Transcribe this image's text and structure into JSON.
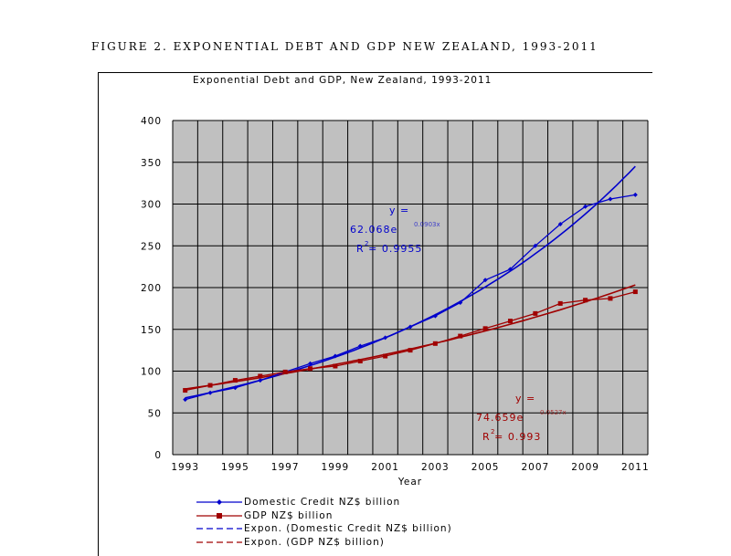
{
  "figure_caption": "FIGURE 2.    EXPONENTIAL DEBT AND GDP NEW ZEALAND, 1993-2011",
  "colors": {
    "credit": "#0000cc",
    "gdp": "#a00000",
    "plot_bg": "#c0c0c0",
    "grid": "#000000"
  },
  "chart_data": {
    "type": "line",
    "title": "Exponential Debt and GDP, New Zealand, 1993-2011",
    "xlabel": "Year",
    "ylabel": "",
    "xlim": [
      1993,
      2011
    ],
    "ylim": [
      0,
      400
    ],
    "y_ticks": [
      0,
      50,
      100,
      150,
      200,
      250,
      300,
      350,
      400
    ],
    "x_tick_labels": [
      "1993",
      "1995",
      "1997",
      "1999",
      "2001",
      "2003",
      "2005",
      "2007",
      "2009",
      "2011"
    ],
    "grid": true,
    "legend_position": "bottom",
    "series": [
      {
        "name": "Domestic Credit NZ$ billion",
        "color": "#0000cc",
        "marker": "diamond",
        "x": [
          1993,
          1994,
          1995,
          1996,
          1997,
          1998,
          1999,
          2000,
          2001,
          2002,
          2003,
          2004,
          2005,
          2006,
          2007,
          2008,
          2009,
          2010,
          2011
        ],
        "y": [
          66,
          74,
          80,
          89,
          99,
          109,
          118,
          130,
          140,
          153,
          166,
          182,
          209,
          222,
          250,
          276,
          297,
          306,
          311
        ]
      },
      {
        "name": "GDP NZ$ billion",
        "color": "#a00000",
        "marker": "square",
        "x": [
          1993,
          1994,
          1995,
          1996,
          1997,
          1998,
          1999,
          2000,
          2001,
          2002,
          2003,
          2004,
          2005,
          2006,
          2007,
          2008,
          2009,
          2010,
          2011
        ],
        "y": [
          77,
          83,
          89,
          94,
          99,
          103,
          106,
          112,
          118,
          125,
          133,
          142,
          151,
          160,
          169,
          181,
          185,
          187,
          195
        ]
      }
    ],
    "trendlines": [
      {
        "name": "Expon. (Domestic Credit NZ$ billion)",
        "color": "#0000cc",
        "a": 62.068,
        "b": 0.0903,
        "r2_label": "0.9955"
      },
      {
        "name": "Expon. (GDP NZ$ billion)",
        "color": "#a00000",
        "a": 74.659,
        "b": 0.0527,
        "r2_label": "0.993"
      }
    ],
    "annotations": [
      {
        "color": "#0000cc",
        "line1": "y =",
        "line2": "62.068e",
        "exp": "0.0903x",
        "line3": "R  = 0.9955"
      },
      {
        "color": "#a00000",
        "line1": "y =",
        "line2": "74.659e",
        "exp": "0.0527x",
        "line3": "R  = 0.993"
      }
    ]
  }
}
